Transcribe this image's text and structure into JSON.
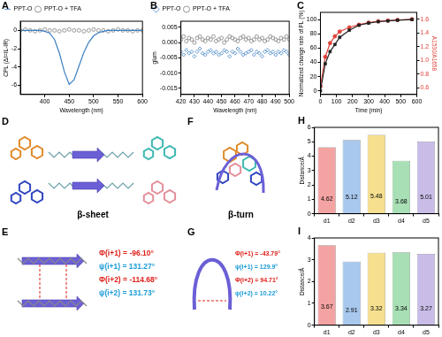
{
  "chart_data": [
    {
      "panel_label": "A",
      "type": "line",
      "x_label": "Wavelength (nm)",
      "y_label": "CPL (ΔI=IL-IR)",
      "x": [
        350,
        360,
        370,
        380,
        390,
        400,
        410,
        420,
        430,
        440,
        450,
        460,
        470,
        480,
        490,
        500,
        510,
        520,
        530,
        540,
        550,
        560,
        570,
        580,
        590,
        600
      ],
      "series": [
        {
          "name": "PPT-O",
          "color": "#3b7fc4",
          "marker": "none",
          "line_style": "solid",
          "values": [
            0,
            0,
            0,
            0,
            0,
            -0.1,
            -0.3,
            -1.0,
            -2.5,
            -4.5,
            -5.9,
            -5.4,
            -3.9,
            -2.4,
            -1.3,
            -0.6,
            -0.25,
            -0.1,
            0,
            0,
            0,
            0,
            0,
            0,
            0,
            0
          ]
        },
        {
          "name": "PPT-O + TFA",
          "color": "#808080",
          "marker": "circle",
          "line_style": "none",
          "values": [
            0,
            0.1,
            0,
            -0.1,
            0,
            0.1,
            0,
            0,
            -0.1,
            0,
            0.1,
            0,
            0,
            -0.1,
            0,
            0.1,
            0,
            0,
            -0.1,
            0,
            0.1,
            0,
            0,
            -0.1,
            0,
            0
          ]
        }
      ],
      "xlim": [
        350,
        600
      ],
      "xticks": [
        400,
        450,
        500,
        550,
        600
      ],
      "ylim": [
        -7,
        1
      ],
      "yticks": [
        -6,
        -4,
        -2,
        0
      ],
      "legend": "upper left",
      "grid": false
    },
    {
      "panel_label": "B",
      "type": "scatter",
      "x_label": "Wavelength (nm)",
      "y_label": "glum",
      "x": [
        420,
        422,
        424,
        426,
        428,
        430,
        432,
        434,
        436,
        438,
        440,
        442,
        444,
        446,
        448,
        450,
        452,
        454,
        456,
        458,
        460,
        462,
        464,
        466,
        468,
        470,
        472,
        474,
        476,
        478,
        480,
        482,
        484,
        486,
        488,
        490,
        492,
        494,
        496,
        498,
        500
      ],
      "series": [
        {
          "name": "PPT-O",
          "color": "#3b7fc4",
          "marker": "diamond",
          "line_style": "none",
          "values": [
            -0.003,
            -0.004,
            -0.0025,
            -0.0035,
            -0.003,
            -0.0045,
            -0.003,
            -0.002,
            -0.0035,
            -0.004,
            -0.003,
            -0.0025,
            -0.0035,
            -0.003,
            -0.004,
            -0.0035,
            -0.0025,
            -0.003,
            -0.0045,
            -0.003,
            -0.0035,
            -0.002,
            -0.003,
            -0.004,
            -0.0035,
            -0.003,
            -0.0025,
            -0.004,
            -0.003,
            -0.0035,
            -0.0045,
            -0.003,
            -0.0025,
            -0.0035,
            -0.003,
            -0.004,
            -0.003,
            -0.0035,
            -0.0025,
            -0.003,
            -0.004
          ]
        },
        {
          "name": "PPT-O + TFA",
          "color": "#808080",
          "marker": "circle",
          "line_style": "none",
          "values": [
            0.001,
            0.002,
            0.0005,
            0.0015,
            0.001,
            0,
            0.0015,
            0.002,
            0.001,
            0.0005,
            0.0015,
            0.001,
            0.002,
            0.0005,
            0.001,
            0.0015,
            0,
            0.001,
            0.002,
            0.0015,
            0.001,
            0.0005,
            0.0015,
            0.002,
            0.001,
            0.0015,
            0.0005,
            0.001,
            0.002,
            0.001,
            0.0015,
            0.0005,
            0.001,
            0.002,
            0.0015,
            0.001,
            0.0005,
            0.0015,
            0.001,
            0.002,
            0.001
          ]
        }
      ],
      "xlim": [
        420,
        500
      ],
      "xticks": [
        420,
        430,
        440,
        450,
        460,
        470,
        480,
        490,
        500
      ],
      "ylim": [
        -0.017,
        0.007
      ],
      "yticks": [
        {
          "value": -0.015,
          "label": "-0.015"
        },
        {
          "value": -0.01,
          "label": "-0.010"
        },
        {
          "value": -0.005,
          "label": "-0.005"
        },
        {
          "value": 0,
          "label": "0.000"
        },
        {
          "value": 0.005,
          "label": "0.005"
        }
      ],
      "legend": "upper left",
      "grid": false
    },
    {
      "panel_label": "C",
      "type": "line",
      "x_label": "Time (min)",
      "y_label": "Normalized change rate of FL (%)",
      "y2_label": "A1530/A1658",
      "x": [
        0,
        30,
        60,
        90,
        120,
        180,
        240,
        300,
        360,
        420,
        480,
        570
      ],
      "series": [
        {
          "name": "Normalized change rate of FL",
          "color": "#222222",
          "marker": "square",
          "line_style": "solid",
          "values": [
            0,
            38,
            55,
            65,
            75,
            85,
            92,
            95,
            97,
            98,
            99,
            100
          ]
        },
        {
          "name": "A1530/A1658",
          "color": "#e0413a",
          "marker": "circle",
          "line_style": "solid",
          "axis": "y2",
          "values": [
            0.62,
            1.05,
            1.25,
            1.35,
            1.42,
            1.48,
            1.52,
            1.55,
            1.57,
            1.58,
            1.59,
            1.6
          ]
        }
      ],
      "xlim": [
        0,
        600
      ],
      "xticks": [
        0,
        100,
        200,
        300,
        400,
        500,
        600
      ],
      "ylim": [
        -5,
        110
      ],
      "yticks": [
        0,
        20,
        40,
        60,
        80,
        100
      ],
      "y2lim": [
        0.5,
        1.7
      ],
      "y2ticks": [
        0.6,
        0.8,
        {
          "value": 1,
          "label": "1.0"
        },
        1.2,
        1.4,
        1.6
      ],
      "grid": false
    },
    {
      "panel_label": "H",
      "type": "bar",
      "y_label": "Distance/Å",
      "categories": [
        "d1",
        "d2",
        "d3",
        "d4",
        "d5"
      ],
      "values": [
        4.62,
        5.12,
        5.48,
        3.68,
        5.01
      ],
      "colors": [
        "#f4a3a3",
        "#a9c8ee",
        "#f6e08f",
        "#a8dfb5",
        "#c9bde8"
      ],
      "ylim": [
        0,
        6
      ],
      "yticks": [
        0,
        1,
        2,
        3,
        4,
        5,
        6
      ],
      "data_labels": true,
      "grid": false
    },
    {
      "panel_label": "I",
      "type": "bar",
      "y_label": "Distance/Å",
      "categories": [
        "d1",
        "d2",
        "d3",
        "d4",
        "d5"
      ],
      "values": [
        3.67,
        2.91,
        3.32,
        3.34,
        3.27
      ],
      "colors": [
        "#f4a3a3",
        "#a9c8ee",
        "#f6e08f",
        "#a8dfb5",
        "#c9bde8"
      ],
      "ylim": [
        0,
        4
      ],
      "yticks": [
        0,
        1,
        2,
        3,
        4
      ],
      "data_labels": true,
      "grid": false
    }
  ],
  "structures": [
    {
      "panel_label": "D",
      "caption": "β-sheet"
    },
    {
      "panel_label": "F",
      "caption": "β-turn"
    },
    {
      "panel_label": "E",
      "annotations": [
        {
          "text": "Φ(i+1) = -96.10°",
          "color": "#e0201b"
        },
        {
          "text": "ψ(i+1) = 131.27°",
          "color": "#1a9bd7"
        },
        {
          "text": "Φ(i+2) = -114.68°",
          "color": "#e0201b"
        },
        {
          "text": "ψ(i+2) = 131.73°",
          "color": "#1a9bd7"
        }
      ]
    },
    {
      "panel_label": "G",
      "annotations": [
        {
          "text": "Φ(i+1) = -43.79°",
          "color": "#e0201b"
        },
        {
          "text": "ψ(i+1) = 129.9°",
          "color": "#1a9bd7"
        },
        {
          "text": "Φ(i+2) = 94.71°",
          "color": "#e0201b"
        },
        {
          "text": "ψ(i+2) = 10.22°",
          "color": "#1a9bd7"
        }
      ]
    }
  ]
}
